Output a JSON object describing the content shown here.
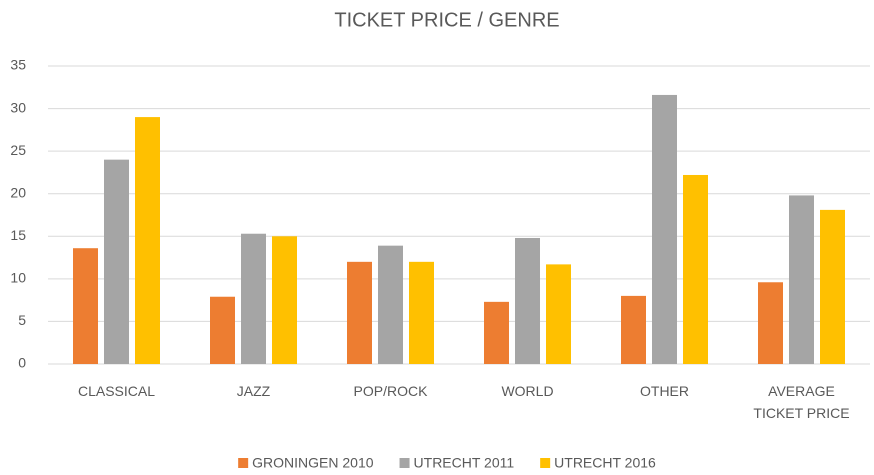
{
  "chart_data": {
    "type": "bar",
    "title": "TICKET PRICE / GENRE",
    "categories": [
      "CLASSICAL",
      "JAZZ",
      "POP/ROCK",
      "WORLD",
      "OTHER",
      "AVERAGE TICKET PRICE"
    ],
    "series": [
      {
        "name": "GRONINGEN 2010",
        "color": "#ed7d31",
        "values": [
          13.6,
          7.9,
          12.0,
          7.3,
          8.0,
          9.6
        ]
      },
      {
        "name": "UTRECHT 2011",
        "color": "#a5a5a5",
        "values": [
          24.0,
          15.3,
          13.9,
          14.8,
          31.6,
          19.8
        ]
      },
      {
        "name": "UTRECHT 2016",
        "color": "#ffc000",
        "values": [
          29.0,
          15.0,
          12.0,
          11.7,
          22.2,
          18.1
        ]
      }
    ],
    "ylim": [
      0,
      35
    ],
    "yticks": [
      0,
      5,
      10,
      15,
      20,
      25,
      30,
      35
    ],
    "grid": true,
    "legend": "bottom"
  }
}
